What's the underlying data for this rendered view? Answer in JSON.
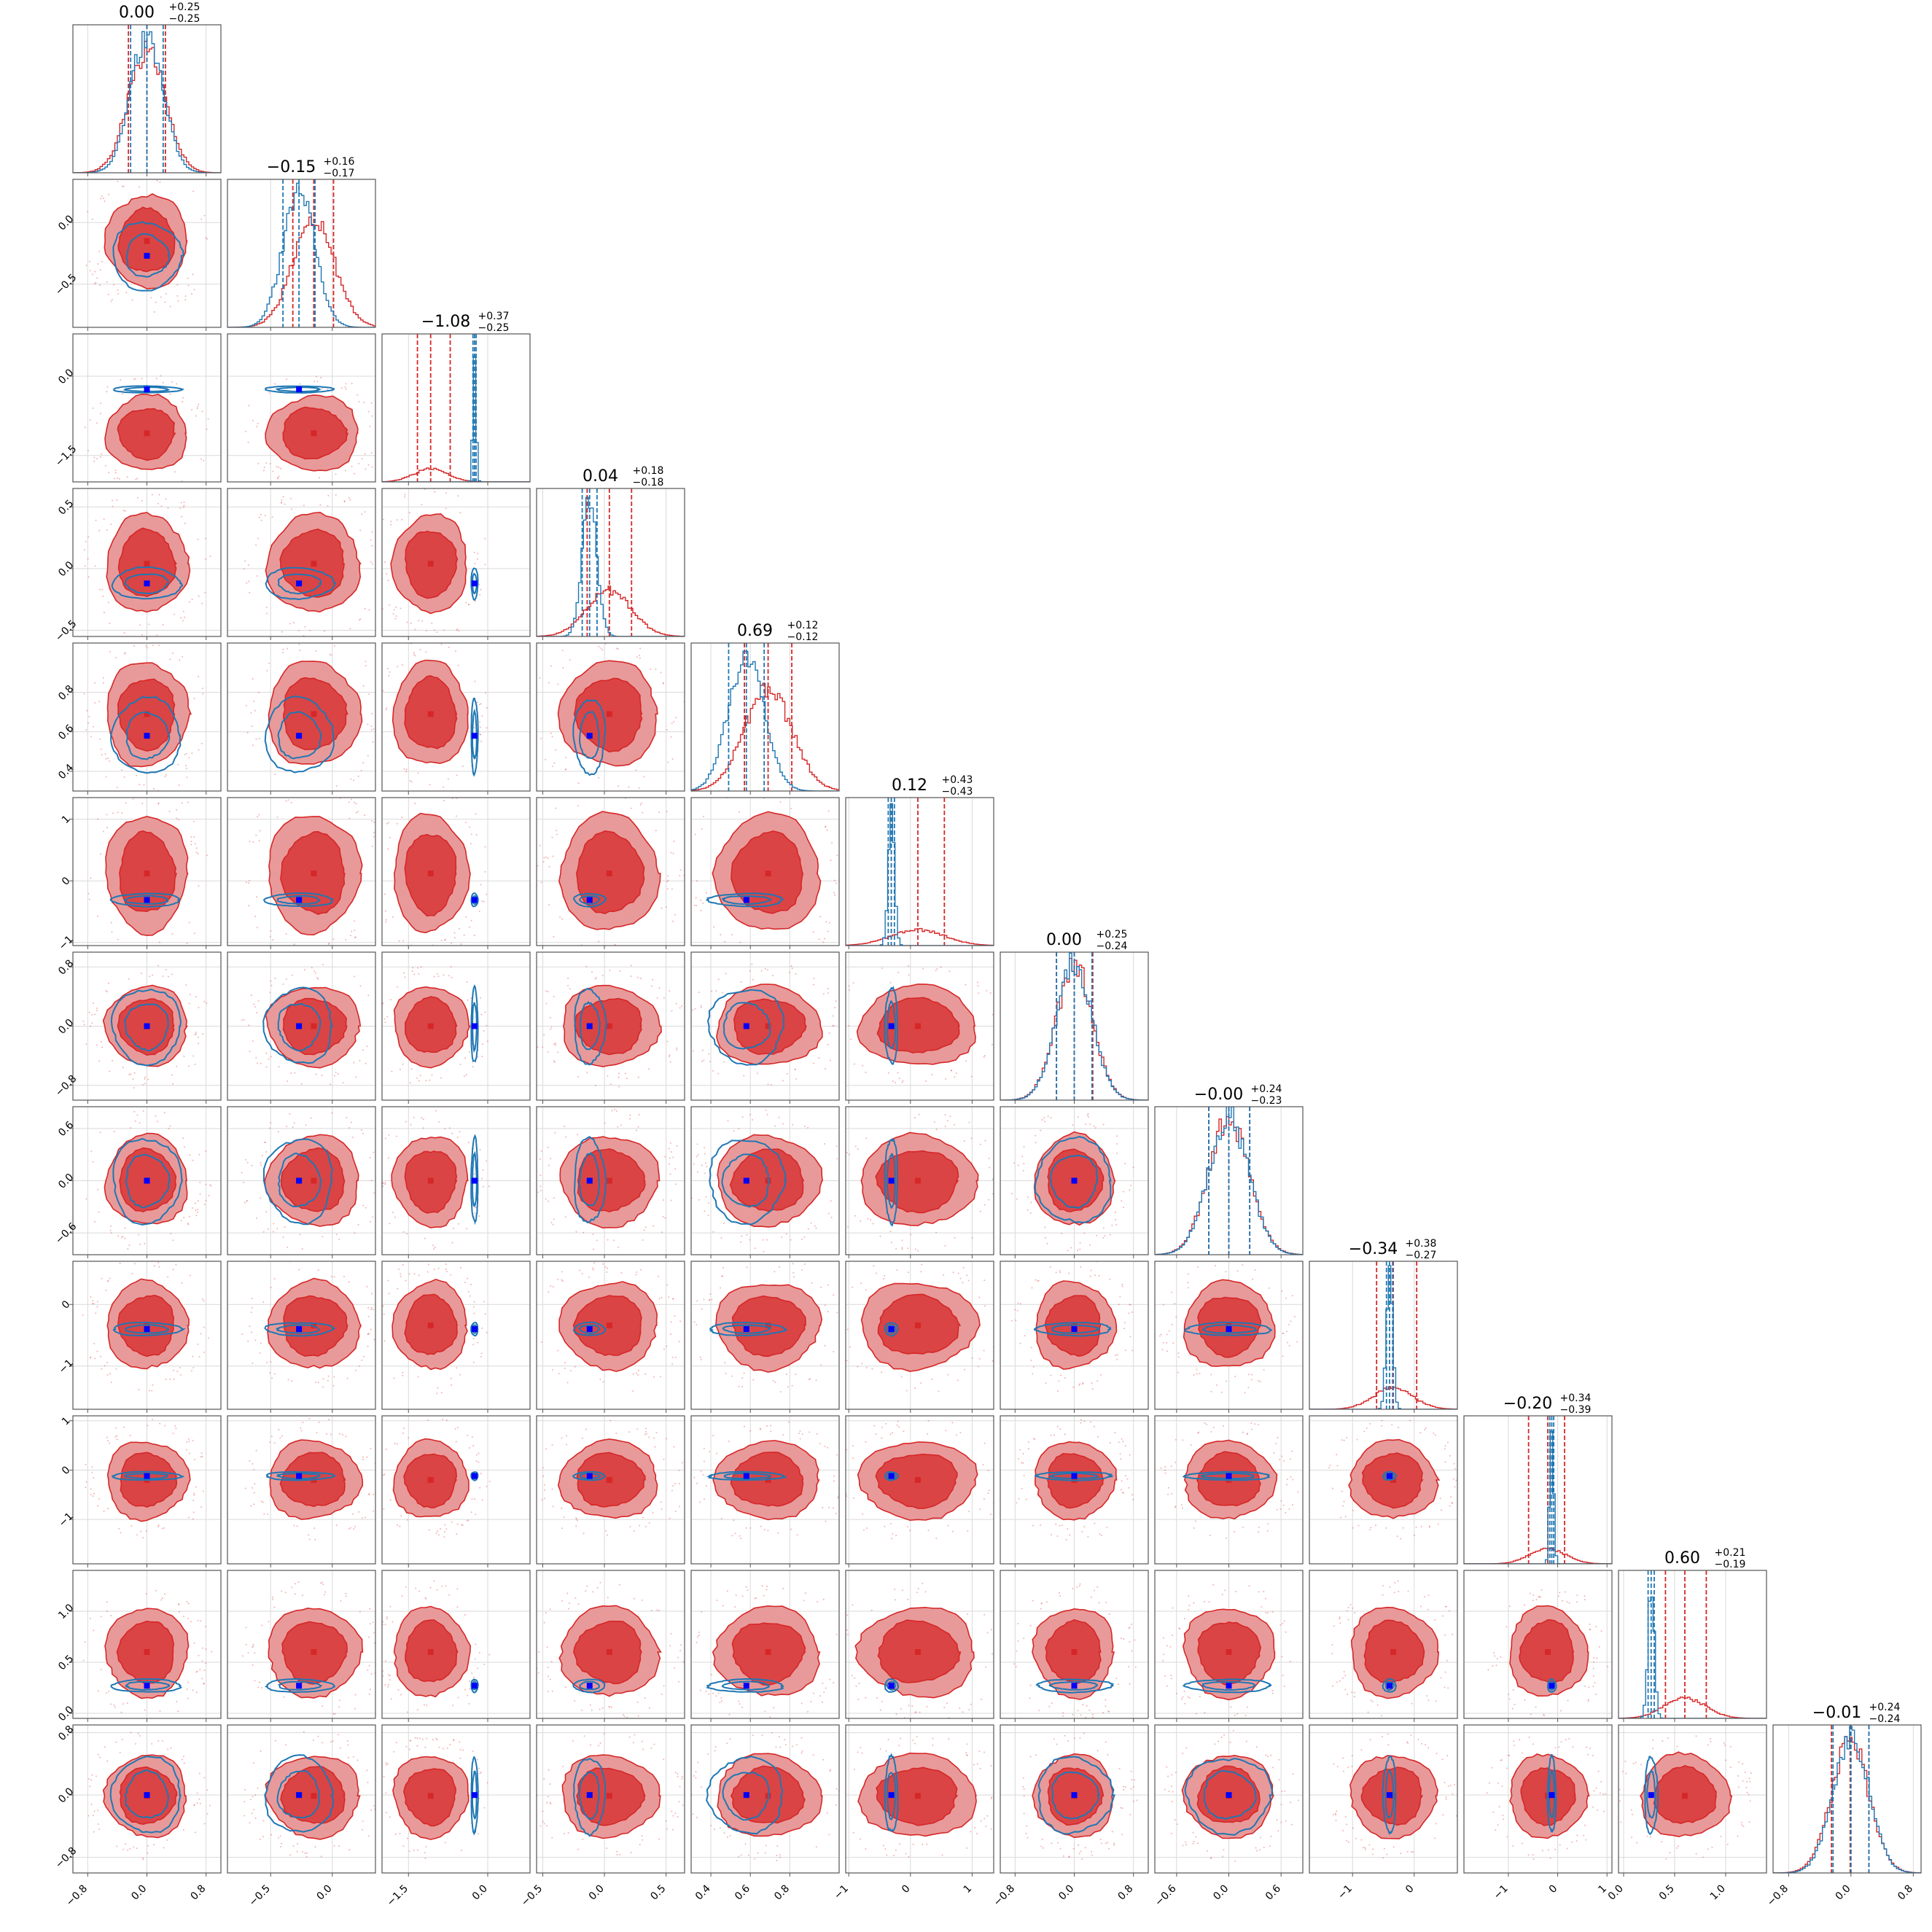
{
  "chart_data": {
    "type": "corner",
    "n_params": 12,
    "colors": {
      "series_a": "#d62728",
      "series_a_fill": "#e89a9a",
      "series_a_core": "#d62728",
      "series_b": "#1f77b4",
      "marker_b": "#0000ff",
      "grid": "#d9d9d9",
      "axes": "#555555"
    },
    "titles": [
      {
        "median": "0.00",
        "plus": "+0.25",
        "minus": "−0.25"
      },
      {
        "median": "−0.15",
        "plus": "+0.16",
        "minus": "−0.17"
      },
      {
        "median": "−1.08",
        "plus": "+0.37",
        "minus": "−0.25"
      },
      {
        "median": "0.04",
        "plus": "+0.18",
        "minus": "−0.18"
      },
      {
        "median": "0.69",
        "plus": "+0.12",
        "minus": "−0.12"
      },
      {
        "median": "0.12",
        "plus": "+0.43",
        "minus": "−0.43"
      },
      {
        "median": "0.00",
        "plus": "+0.25",
        "minus": "−0.24"
      },
      {
        "median": "−0.00",
        "plus": "+0.24",
        "minus": "−0.23"
      },
      {
        "median": "−0.34",
        "plus": "+0.38",
        "minus": "−0.27"
      },
      {
        "median": "−0.20",
        "plus": "+0.34",
        "minus": "−0.39"
      },
      {
        "median": "0.60",
        "plus": "+0.21",
        "minus": "−0.19"
      },
      {
        "median": "−0.01",
        "plus": "+0.24",
        "minus": "−0.24"
      }
    ],
    "params": [
      {
        "range": [
          -1.0,
          1.0
        ],
        "ticks": [
          -0.8,
          0.0,
          0.8
        ],
        "tick_labels": [
          "−0.8",
          "0.0",
          "0.8"
        ],
        "a": {
          "mean": 0.0,
          "sd": 0.25
        },
        "b": {
          "mean": 0.0,
          "sd": 0.22
        },
        "truth": 0.0,
        "a_q": [
          -0.25,
          0.0,
          0.25
        ],
        "b_q": [
          -0.22,
          0.0,
          0.22
        ]
      },
      {
        "range": [
          -0.85,
          0.35
        ],
        "ticks": [
          -0.5,
          0.0
        ],
        "tick_labels": [
          "−0.5",
          "0.0"
        ],
        "a": {
          "mean": -0.15,
          "sd": 0.17
        },
        "b": {
          "mean": -0.27,
          "sd": 0.13
        },
        "truth": -0.27,
        "a_q": [
          -0.32,
          -0.15,
          0.01
        ],
        "b_q": [
          -0.4,
          -0.27,
          -0.14
        ]
      },
      {
        "range": [
          -2.0,
          0.8
        ],
        "ticks": [
          -1.5,
          0.0
        ],
        "tick_labels": [
          "−1.5",
          "0.0"
        ],
        "a": {
          "mean": -1.08,
          "sd": 0.32
        },
        "b": {
          "mean": -0.25,
          "sd": 0.03
        },
        "truth": -0.25,
        "a_q": [
          -1.33,
          -1.08,
          -0.71
        ],
        "b_q": [
          -0.28,
          -0.25,
          -0.22
        ]
      },
      {
        "range": [
          -0.55,
          0.65
        ],
        "ticks": [
          -0.5,
          0.0,
          0.5
        ],
        "tick_labels": [
          "−0.5",
          "0.0",
          "0.5"
        ],
        "a": {
          "mean": 0.04,
          "sd": 0.18
        },
        "b": {
          "mean": -0.12,
          "sd": 0.06
        },
        "truth": -0.12,
        "a_q": [
          -0.14,
          0.04,
          0.22
        ],
        "b_q": [
          -0.18,
          -0.12,
          -0.06
        ]
      },
      {
        "range": [
          0.3,
          1.05
        ],
        "ticks": [
          0.4,
          0.6,
          0.8
        ],
        "tick_labels": [
          "0.4",
          "0.6",
          "0.8"
        ],
        "a": {
          "mean": 0.69,
          "sd": 0.12
        },
        "b": {
          "mean": 0.58,
          "sd": 0.09
        },
        "truth": 0.58,
        "a_q": [
          0.57,
          0.69,
          0.81
        ],
        "b_q": [
          0.49,
          0.58,
          0.67
        ]
      },
      {
        "range": [
          -1.05,
          1.35
        ],
        "ticks": [
          -1,
          0,
          1
        ],
        "tick_labels": [
          "−1",
          "0",
          "1"
        ],
        "a": {
          "mean": 0.12,
          "sd": 0.43
        },
        "b": {
          "mean": -0.31,
          "sd": 0.05
        },
        "truth": -0.31,
        "a_q": [
          -0.31,
          0.12,
          0.55
        ],
        "b_q": [
          -0.36,
          -0.31,
          -0.26
        ]
      },
      {
        "range": [
          -1.0,
          1.0
        ],
        "ticks": [
          -0.8,
          0.0,
          0.8
        ],
        "tick_labels": [
          "−0.8",
          "0.0",
          "0.8"
        ],
        "a": {
          "mean": 0.0,
          "sd": 0.245
        },
        "b": {
          "mean": 0.0,
          "sd": 0.24
        },
        "truth": 0.0,
        "a_q": [
          -0.24,
          0.0,
          0.25
        ],
        "b_q": [
          -0.24,
          0.0,
          0.24
        ]
      },
      {
        "range": [
          -0.85,
          0.85
        ],
        "ticks": [
          -0.6,
          0.0,
          0.6
        ],
        "tick_labels": [
          "−0.6",
          "0.0",
          "0.6"
        ],
        "a": {
          "mean": 0.0,
          "sd": 0.235
        },
        "b": {
          "mean": 0.0,
          "sd": 0.23
        },
        "truth": 0.0,
        "a_q": [
          -0.23,
          0.0,
          0.24
        ],
        "b_q": [
          -0.23,
          0.0,
          0.24
        ]
      },
      {
        "range": [
          -1.7,
          0.7
        ],
        "ticks": [
          -1,
          0
        ],
        "tick_labels": [
          "−1",
          "0"
        ],
        "a": {
          "mean": -0.34,
          "sd": 0.32
        },
        "b": {
          "mean": -0.4,
          "sd": 0.05
        },
        "truth": -0.4,
        "a_q": [
          -0.61,
          -0.34,
          0.04
        ],
        "b_q": [
          -0.45,
          -0.4,
          -0.35
        ]
      },
      {
        "range": [
          -1.9,
          1.1
        ],
        "ticks": [
          -1,
          0,
          1
        ],
        "tick_labels": [
          "−1",
          "0",
          "1"
        ],
        "a": {
          "mean": -0.2,
          "sd": 0.36
        },
        "b": {
          "mean": -0.12,
          "sd": 0.04
        },
        "truth": -0.12,
        "a_q": [
          -0.59,
          -0.2,
          0.14
        ],
        "b_q": [
          -0.16,
          -0.12,
          -0.08
        ]
      },
      {
        "range": [
          -0.05,
          1.4
        ],
        "ticks": [
          0.0,
          0.5,
          1.0
        ],
        "tick_labels": [
          "0.0",
          "0.5",
          "1.0"
        ],
        "a": {
          "mean": 0.6,
          "sd": 0.2
        },
        "b": {
          "mean": 0.27,
          "sd": 0.03
        },
        "truth": 0.27,
        "a_q": [
          0.41,
          0.6,
          0.81
        ],
        "b_q": [
          0.24,
          0.27,
          0.3
        ]
      },
      {
        "range": [
          -1.0,
          0.9
        ],
        "ticks": [
          -0.8,
          0.0,
          0.8
        ],
        "tick_labels": [
          "−0.8",
          "0.0",
          "0.8"
        ],
        "a": {
          "mean": -0.01,
          "sd": 0.24
        },
        "b": {
          "mean": 0.0,
          "sd": 0.23
        },
        "truth": 0.0,
        "a_q": [
          -0.25,
          -0.01,
          0.23
        ],
        "b_q": [
          -0.23,
          0.0,
          0.23
        ]
      }
    ]
  }
}
